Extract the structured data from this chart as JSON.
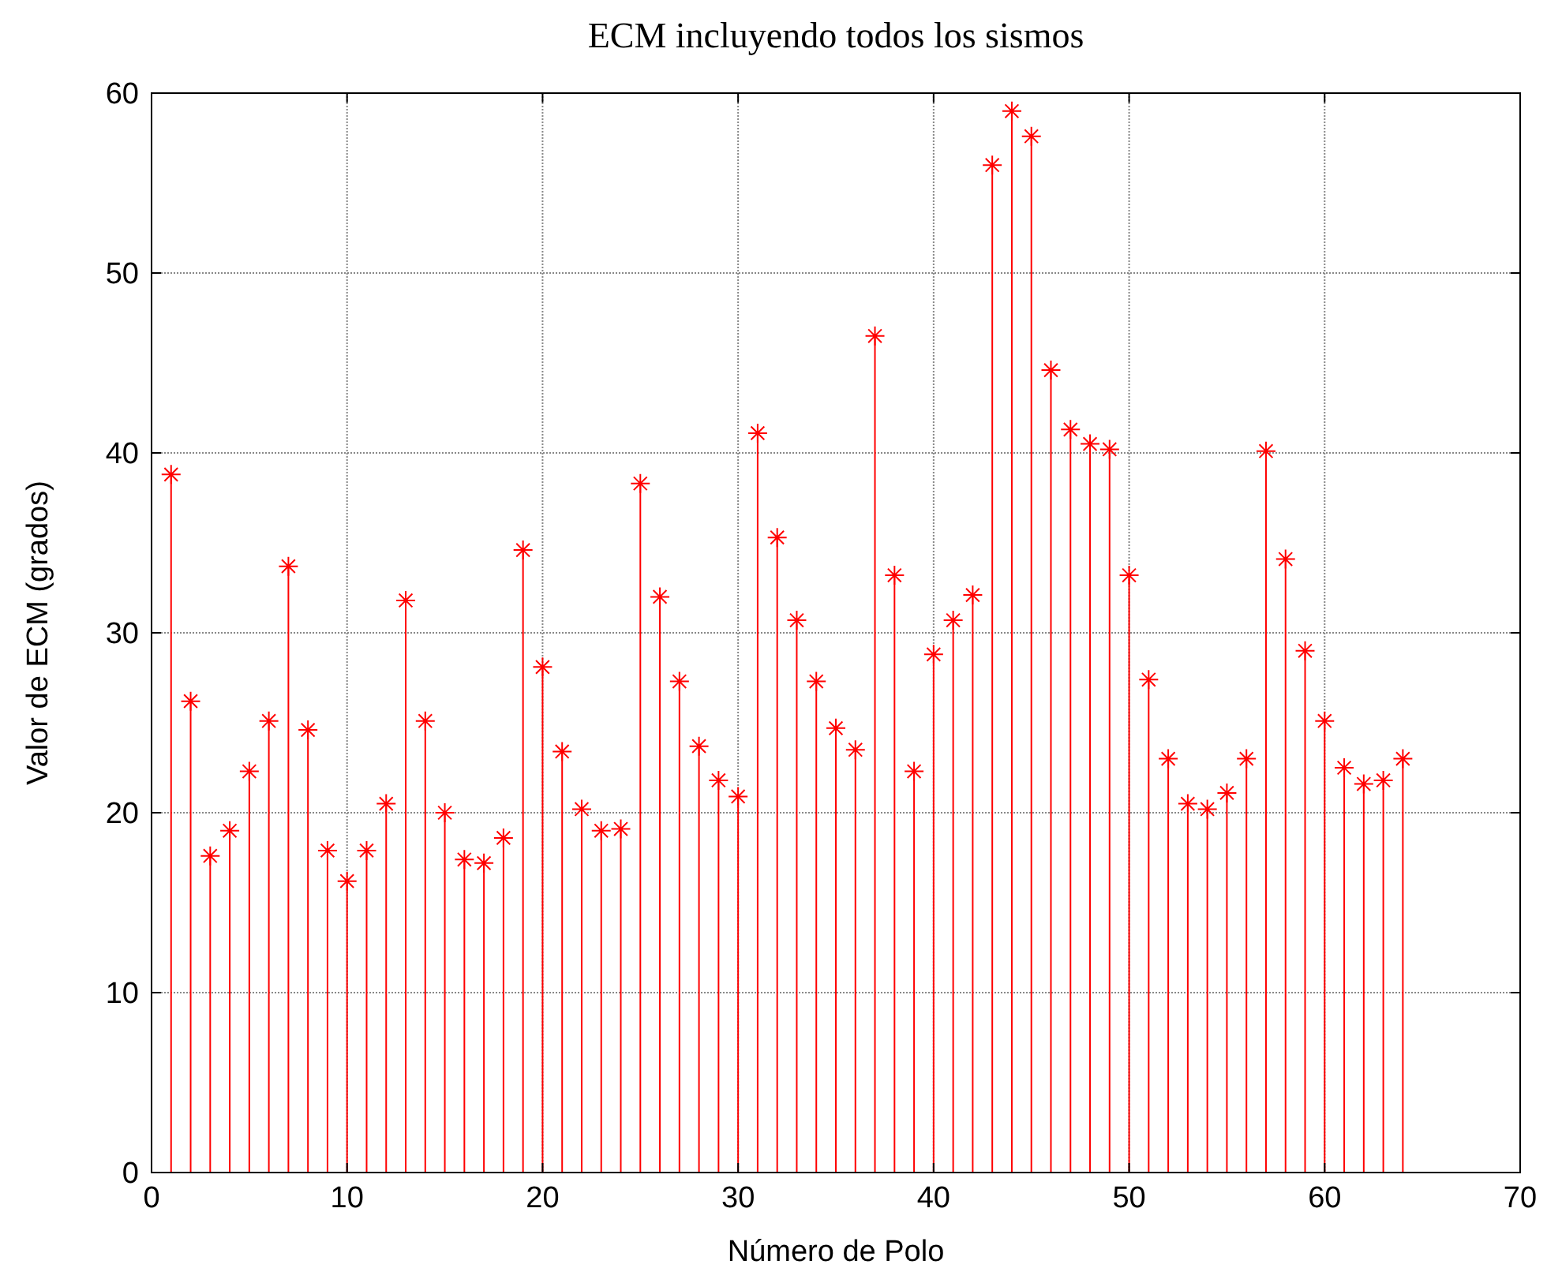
{
  "chart_data": {
    "type": "lollipop",
    "title": "ECM incluyendo todos los sismos",
    "xlabel": "Número de Polo",
    "ylabel": "Valor de ECM (grados)",
    "x": [
      1,
      2,
      3,
      4,
      5,
      6,
      7,
      8,
      9,
      10,
      11,
      12,
      13,
      14,
      15,
      16,
      17,
      18,
      19,
      20,
      21,
      22,
      23,
      24,
      25,
      26,
      27,
      28,
      29,
      30,
      31,
      32,
      33,
      34,
      35,
      36,
      37,
      38,
      39,
      40,
      41,
      42,
      43,
      44,
      45,
      46,
      47,
      48,
      49,
      50,
      51,
      52,
      53,
      54,
      55,
      56,
      57,
      58,
      59,
      60,
      61,
      62,
      63,
      64
    ],
    "series": [
      {
        "color": "#ff0000",
        "values": [
          38.8,
          26.2,
          17.6,
          19.0,
          22.3,
          25.1,
          33.7,
          24.6,
          17.9,
          16.2,
          17.9,
          20.5,
          31.8,
          25.1,
          20.0,
          17.4,
          17.2,
          18.6,
          34.6,
          28.1,
          23.4,
          20.2,
          19.0,
          19.1,
          38.3,
          32.0,
          27.3,
          23.7,
          21.8,
          20.9,
          41.1,
          35.3,
          30.7,
          27.3,
          24.7,
          23.5,
          46.5,
          33.2,
          22.3,
          28.8,
          30.7,
          32.1,
          56.0,
          59.0,
          57.6,
          44.6,
          41.3,
          40.5,
          40.2,
          33.2,
          27.4,
          23.0,
          20.5,
          20.2,
          21.1,
          23.0,
          40.1,
          34.1,
          29.0,
          25.1,
          22.5,
          21.6,
          21.8,
          23.0
        ]
      }
    ],
    "xlim": [
      0,
      70
    ],
    "xticks": [
      0,
      10,
      20,
      30,
      40,
      50,
      60,
      70
    ],
    "ylim": [
      0,
      60
    ],
    "yticks": [
      0,
      10,
      20,
      30,
      40,
      50,
      60
    ],
    "grid": true,
    "marker": "cross"
  }
}
